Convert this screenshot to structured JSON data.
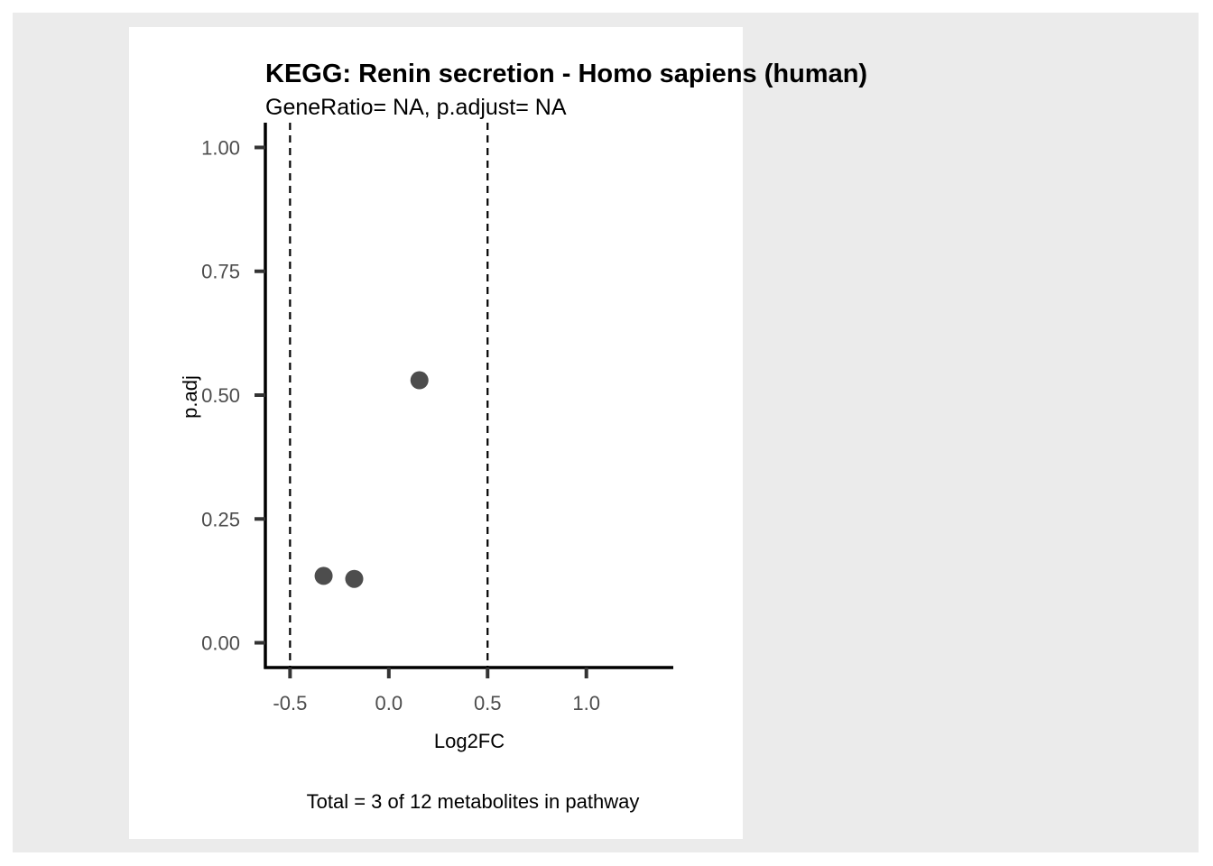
{
  "chart_data": {
    "type": "scatter",
    "title": "KEGG: Renin secretion - Homo sapiens (human)",
    "subtitle": "GeneRatio= NA, p.adjust= NA",
    "xlabel": "Log2FC",
    "ylabel": "p.adj",
    "caption": "Total = 3 of 12 metabolites in pathway",
    "xlim": [
      -0.625,
      1.44
    ],
    "ylim": [
      -0.05,
      1.05
    ],
    "x_ticks": [
      -0.5,
      0.0,
      0.5,
      1.0
    ],
    "x_tick_labels": [
      "-0.5",
      "0.0",
      "0.5",
      "1.0"
    ],
    "y_ticks": [
      0.0,
      0.25,
      0.5,
      0.75,
      1.0
    ],
    "y_tick_labels": [
      "0.00",
      "0.25",
      "0.50",
      "0.75",
      "1.00"
    ],
    "vlines": [
      -0.5,
      0.5
    ],
    "points": [
      {
        "x": -0.33,
        "y": 0.135
      },
      {
        "x": -0.175,
        "y": 0.129
      },
      {
        "x": 0.155,
        "y": 0.53
      }
    ],
    "point_color": "#4d4d4d",
    "grid": false
  }
}
